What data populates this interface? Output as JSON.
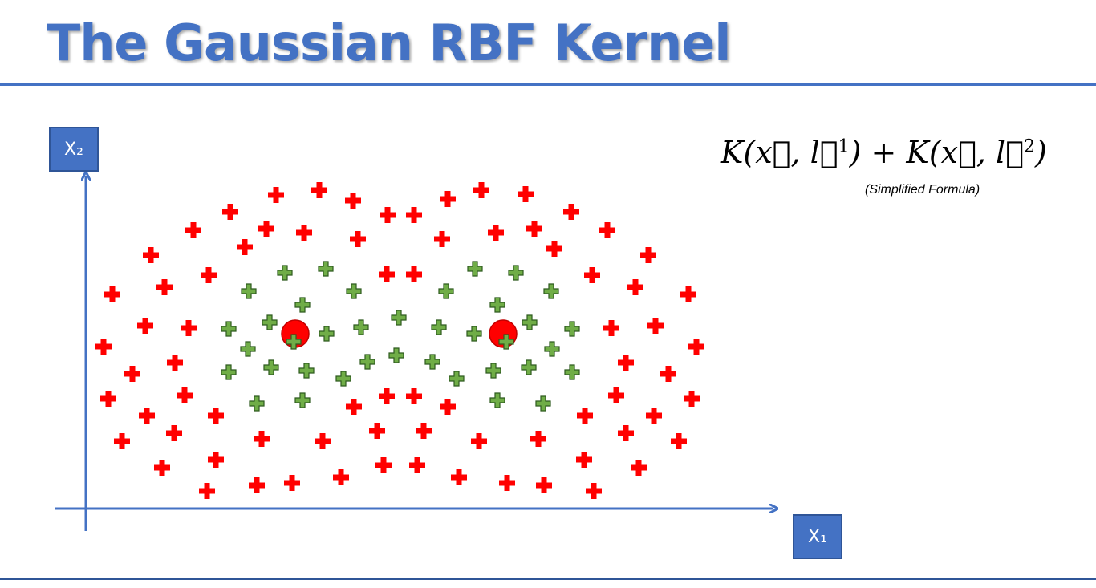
{
  "slide": {
    "title": "The Gaussian RBF Kernel",
    "x2_label": "X₂",
    "x1_label": "X₁",
    "formula": {
      "k": "K",
      "x": "x⃗",
      "l": "l⃗",
      "sup1": "1",
      "sup2": "2",
      "open": "(",
      "close": ")",
      "comma": ", ",
      "plus": " + "
    },
    "note": "(Simplified Formula)"
  },
  "colors": {
    "accent": "#4472C4",
    "red_class": "#FF0000",
    "green_class": "#70AD47",
    "green_outline": "#2E5B1F",
    "landmark": "#FF0000"
  }
}
